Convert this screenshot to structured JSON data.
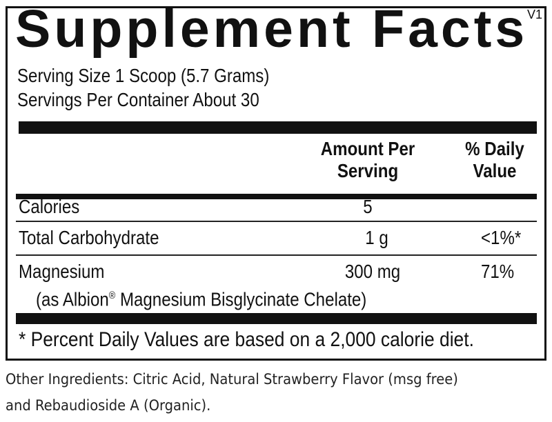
{
  "label": {
    "title": "Supplement Facts",
    "version": "V1",
    "serving_size": "Serving Size 1 Scoop (5.7 Grams)",
    "servings_per_container": "Servings Per Container About 30",
    "header": {
      "amount_line1": "Amount Per",
      "amount_line2": "Serving",
      "dv_line1": "% Daily",
      "dv_line2": "Value"
    },
    "rows": [
      {
        "name": "Calories",
        "amount": "5",
        "dv": ""
      },
      {
        "name": "Total Carbohydrate",
        "amount": "1 g",
        "dv": "<1%*"
      },
      {
        "name": "Magnesium",
        "amount": "300 mg",
        "dv": "71%",
        "sub_prefix": "(as Albion",
        "sub_mark": "®",
        "sub_suffix": " Magnesium Bisglycinate Chelate)"
      }
    ],
    "footnote": "* Percent Daily Values are based on a 2,000 calorie diet."
  },
  "other_ingredients": {
    "line1": "Other Ingredients: Citric Acid, Natural Strawberry Flavor (msg free)",
    "line2": "and Rebaudioside A (Organic)."
  }
}
